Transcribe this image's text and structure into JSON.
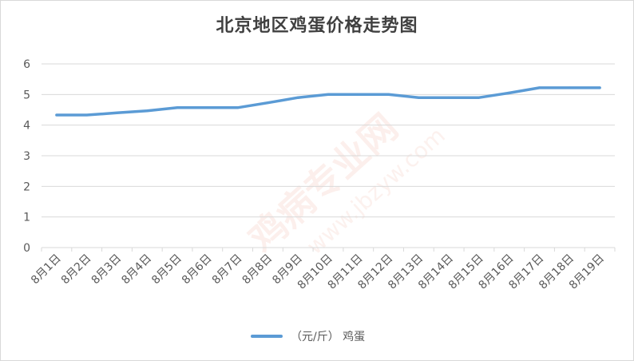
{
  "chart_data": {
    "type": "line",
    "title": "北京地区鸡蛋价格走势图",
    "categories": [
      "8月1日",
      "8月2日",
      "8月3日",
      "8月4日",
      "8月5日",
      "8月6日",
      "8月7日",
      "8月8日",
      "8月9日",
      "8月10日",
      "8月11日",
      "8月12日",
      "8月13日",
      "8月14日",
      "8月15日",
      "8月16日",
      "8月17日",
      "8月18日",
      "8月19日"
    ],
    "series": [
      {
        "name": "（元/斤） 鸡蛋",
        "color": "#5b9bd5",
        "values": [
          4.33,
          4.33,
          4.4,
          4.47,
          4.57,
          4.57,
          4.57,
          4.73,
          4.9,
          5.0,
          5.0,
          5.0,
          4.9,
          4.9,
          4.9,
          5.05,
          5.22,
          5.22,
          5.22
        ]
      }
    ],
    "ylim": [
      0,
      6
    ],
    "yticks": [
      "0",
      "1",
      "2",
      "3",
      "4",
      "5",
      "6"
    ],
    "grid": true,
    "legend_position": "bottom"
  },
  "watermark": {
    "brand": "鸡病专业网",
    "url": "www.jbzyw.com"
  }
}
